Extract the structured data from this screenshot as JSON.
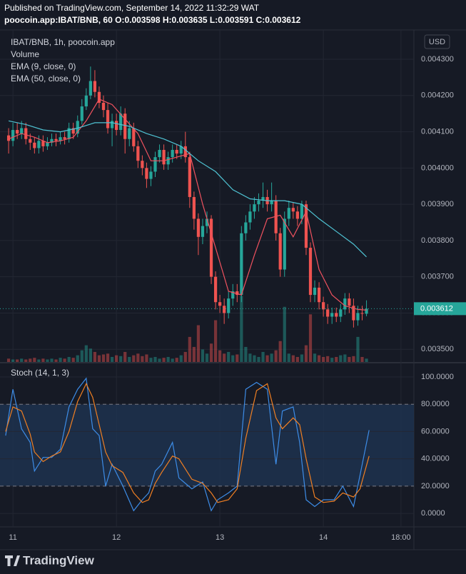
{
  "header": {
    "published": "Published on TradingView.com, September 14, 2022 11:32:29 WAT",
    "symbol_line": "poocoin.app:IBAT/BNB, 60 O:0.003598 H:0.003635 L:0.003591 C:0.003612"
  },
  "chart_data": [
    {
      "type": "candlestick",
      "title": "IBAT/BNB, 1h, poocoin.app",
      "currency": "USD",
      "up_color": "#26a69a",
      "down_color": "#ef5350",
      "grid": true,
      "xlim": [
        -3,
        93
      ],
      "xticks": [
        {
          "value": 0,
          "label": "11"
        },
        {
          "value": 24,
          "label": "12"
        },
        {
          "value": 48,
          "label": "13"
        },
        {
          "value": 72,
          "label": "14"
        },
        {
          "value": 90,
          "label": "18:00"
        }
      ],
      "ylim": [
        0.003465,
        0.0043808
      ],
      "yticks": [
        {
          "value": 0.0035,
          "label": "0.003500"
        },
        {
          "value": 0.0036,
          "label": "0.003600"
        },
        {
          "value": 0.0037,
          "label": "0.003700"
        },
        {
          "value": 0.0038,
          "label": "0.003800"
        },
        {
          "value": 0.0039,
          "label": "0.003900"
        },
        {
          "value": 0.004,
          "label": "0.004000"
        },
        {
          "value": 0.0041,
          "label": "0.004100"
        },
        {
          "value": 0.0042,
          "label": "0.004200"
        },
        {
          "value": 0.0043,
          "label": "0.004300"
        }
      ],
      "x": [
        -1,
        0,
        1,
        2,
        3,
        4,
        5,
        6,
        7,
        8,
        9,
        10,
        11,
        12,
        13,
        14,
        15,
        16,
        17,
        18,
        19,
        20,
        21,
        22,
        23,
        24,
        25,
        26,
        27,
        28,
        29,
        30,
        31,
        32,
        33,
        34,
        35,
        36,
        37,
        38,
        39,
        40,
        41,
        42,
        43,
        44,
        45,
        46,
        47,
        48,
        49,
        50,
        51,
        52,
        53,
        54,
        55,
        56,
        57,
        58,
        59,
        60,
        61,
        62,
        63,
        64,
        65,
        66,
        67,
        68,
        69,
        70,
        71,
        72,
        73,
        74,
        75,
        76,
        77,
        78,
        79,
        80,
        81,
        82
      ],
      "open": [
        0.00409,
        0.004075,
        0.004105,
        0.004095,
        0.00411,
        0.00408,
        0.00407,
        0.004055,
        0.004075,
        0.00406,
        0.00407,
        0.00408,
        0.004075,
        0.004085,
        0.00408,
        0.00411,
        0.004095,
        0.00413,
        0.00417,
        0.0042,
        0.00424,
        0.00421,
        0.00418,
        0.00416,
        0.00411,
        0.00413,
        0.004105,
        0.00415,
        0.00408,
        0.00411,
        0.00406,
        0.00402,
        0.004,
        0.00397,
        0.00399,
        0.00403,
        0.00405,
        0.00401,
        0.00403,
        0.00405,
        0.00404,
        0.00406,
        0.00403,
        0.00392,
        0.00386,
        0.00381,
        0.00384,
        0.00386,
        0.0037,
        0.00363,
        0.00362,
        0.0036,
        0.00364,
        0.00366,
        0.00365,
        0.00382,
        0.00385,
        0.00388,
        0.0039,
        0.00391,
        0.00392,
        0.0039,
        0.00391,
        0.00382,
        0.00372,
        0.00386,
        0.00389,
        0.00388,
        0.00386,
        0.0039,
        0.00378,
        0.00365,
        0.00367,
        0.00363,
        0.00361,
        0.00359,
        0.0036,
        0.00359,
        0.00361,
        0.00364,
        0.00362,
        0.00358,
        0.0036,
        0.003598
      ],
      "high": [
        0.00411,
        0.004125,
        0.004125,
        0.00413,
        0.004125,
        0.004095,
        0.004085,
        0.00409,
        0.00409,
        0.004085,
        0.004095,
        0.004095,
        0.0041,
        0.0041,
        0.004125,
        0.004125,
        0.004145,
        0.00419,
        0.00422,
        0.00428,
        0.00427,
        0.004225,
        0.0042,
        0.00418,
        0.00415,
        0.00415,
        0.00417,
        0.004165,
        0.00413,
        0.004125,
        0.004075,
        0.004035,
        0.004015,
        0.004005,
        0.004045,
        0.004065,
        0.004065,
        0.004045,
        0.004065,
        0.004065,
        0.004075,
        0.0041,
        0.004045,
        0.003935,
        0.003875,
        0.00386,
        0.00388,
        0.00387,
        0.003715,
        0.00365,
        0.00364,
        0.00366,
        0.00368,
        0.00368,
        0.00384,
        0.00387,
        0.0039,
        0.00392,
        0.00393,
        0.00396,
        0.00394,
        0.00396,
        0.003925,
        0.003835,
        0.00388,
        0.00391,
        0.003905,
        0.003895,
        0.00391,
        0.00391,
        0.003795,
        0.00369,
        0.003685,
        0.003645,
        0.003625,
        0.003615,
        0.003615,
        0.003625,
        0.003655,
        0.003655,
        0.00364,
        0.00362,
        0.00362,
        0.003635
      ],
      "low": [
        0.00404,
        0.00406,
        0.00408,
        0.00408,
        0.004065,
        0.00405,
        0.00404,
        0.00404,
        0.004045,
        0.00405,
        0.00406,
        0.00406,
        0.004065,
        0.004065,
        0.00407,
        0.00408,
        0.004085,
        0.00412,
        0.00416,
        0.00419,
        0.004195,
        0.004165,
        0.00414,
        0.004095,
        0.00406,
        0.00409,
        0.00409,
        0.00404,
        0.00406,
        0.004045,
        0.004,
        0.00398,
        0.003945,
        0.00395,
        0.003975,
        0.004015,
        0.003995,
        0.003995,
        0.004015,
        0.004025,
        0.004025,
        0.004015,
        0.00389,
        0.00383,
        0.00376,
        0.00379,
        0.00382,
        0.00368,
        0.00361,
        0.0036,
        0.00357,
        0.003585,
        0.00362,
        0.00363,
        0.00363,
        0.0038,
        0.00383,
        0.00386,
        0.00388,
        0.00389,
        0.00388,
        0.00388,
        0.0038,
        0.0037,
        0.0037,
        0.00384,
        0.00386,
        0.00384,
        0.003845,
        0.00376,
        0.00363,
        0.00363,
        0.00361,
        0.00359,
        0.00357,
        0.00357,
        0.003575,
        0.003575,
        0.003595,
        0.0036,
        0.00356,
        0.003565,
        0.00358,
        0.003591
      ],
      "close": [
        0.004075,
        0.004105,
        0.004095,
        0.00411,
        0.00408,
        0.00407,
        0.004055,
        0.004075,
        0.00406,
        0.00407,
        0.00408,
        0.004075,
        0.004085,
        0.00408,
        0.00411,
        0.004095,
        0.00413,
        0.00417,
        0.0042,
        0.00424,
        0.00421,
        0.00418,
        0.00416,
        0.00411,
        0.00413,
        0.004105,
        0.00415,
        0.00408,
        0.00411,
        0.00406,
        0.00402,
        0.004,
        0.00397,
        0.00399,
        0.00403,
        0.00405,
        0.00401,
        0.00403,
        0.00405,
        0.00404,
        0.00406,
        0.00403,
        0.00392,
        0.00386,
        0.00381,
        0.00384,
        0.00386,
        0.0037,
        0.00363,
        0.00362,
        0.0036,
        0.00364,
        0.00366,
        0.00365,
        0.00382,
        0.00385,
        0.00388,
        0.0039,
        0.00391,
        0.00392,
        0.0039,
        0.00391,
        0.00382,
        0.00372,
        0.00386,
        0.00389,
        0.00388,
        0.00386,
        0.0039,
        0.00378,
        0.00365,
        0.00367,
        0.00363,
        0.00361,
        0.00359,
        0.0036,
        0.00359,
        0.00361,
        0.00364,
        0.00362,
        0.00358,
        0.0036,
        0.003598,
        0.003612
      ],
      "volume": {
        "name": "Volume",
        "ylim": [
          0,
          100
        ],
        "values": [
          4,
          3,
          3,
          4,
          3,
          4,
          5,
          3,
          4,
          3,
          4,
          3,
          5,
          4,
          6,
          5,
          8,
          14,
          20,
          16,
          12,
          8,
          9,
          10,
          6,
          8,
          7,
          12,
          6,
          8,
          10,
          7,
          9,
          5,
          6,
          4,
          5,
          6,
          4,
          5,
          8,
          12,
          30,
          18,
          44,
          15,
          10,
          22,
          50,
          14,
          10,
          12,
          8,
          9,
          79,
          18,
          10,
          8,
          6,
          12,
          8,
          10,
          14,
          25,
          66,
          10,
          8,
          6,
          9,
          20,
          57,
          10,
          8,
          6,
          7,
          5,
          6,
          8,
          9,
          6,
          7,
          30,
          6,
          4
        ]
      },
      "series": [
        {
          "name": "EMA (9, close, 0)",
          "color": "#f0525f",
          "x": [
            -1,
            2,
            5,
            8,
            11,
            14,
            17,
            20,
            23,
            26,
            29,
            32,
            35,
            38,
            41,
            44,
            47,
            50,
            53,
            56,
            59,
            62,
            65,
            68,
            71,
            74,
            77,
            80,
            82
          ],
          "values": [
            0.00408,
            0.004095,
            0.004085,
            0.00407,
            0.004075,
            0.004085,
            0.00413,
            0.00419,
            0.004175,
            0.004135,
            0.004095,
            0.00402,
            0.00402,
            0.00403,
            0.00404,
            0.0039,
            0.00378,
            0.00366,
            0.00365,
            0.00376,
            0.00386,
            0.00387,
            0.00381,
            0.00388,
            0.00372,
            0.00365,
            0.00362,
            0.00361,
            0.003608
          ]
        },
        {
          "name": "EMA (50, close, 0)",
          "color": "#4fc3d3",
          "x": [
            -1,
            3,
            7,
            11,
            15,
            19,
            23,
            27,
            31,
            35,
            39,
            43,
            47,
            51,
            55,
            59,
            63,
            67,
            71,
            75,
            79,
            82
          ],
          "values": [
            0.00413,
            0.00412,
            0.004105,
            0.0041,
            0.00411,
            0.004125,
            0.004125,
            0.004115,
            0.004095,
            0.00408,
            0.00406,
            0.00402,
            0.00399,
            0.00394,
            0.003915,
            0.00391,
            0.00391,
            0.0039,
            0.00386,
            0.003825,
            0.00379,
            0.003755
          ]
        }
      ]
    },
    {
      "type": "line",
      "title": "Stoch (14, 1, 3)",
      "xlim": [
        -3,
        93
      ],
      "ylim": [
        -9.9,
        109.4
      ],
      "yticks": [
        {
          "value": 0,
          "label": "0.0000"
        },
        {
          "value": 20,
          "label": "20.0000"
        },
        {
          "value": 40,
          "label": "40.0000"
        },
        {
          "value": 60,
          "label": "60.0000"
        },
        {
          "value": 80,
          "label": "80.0000"
        },
        {
          "value": 100,
          "label": "100.0000"
        }
      ],
      "bands": [
        80,
        20
      ],
      "band_color": "#1f3554",
      "x": [
        -1.7,
        0,
        2,
        4,
        5,
        7,
        9,
        11,
        13,
        15,
        17,
        18.5,
        20,
        21.5,
        23,
        25.5,
        28,
        30,
        31.5,
        33,
        34.5,
        37,
        38.5,
        41.5,
        44,
        46,
        47.5,
        50,
        52,
        54,
        56.5,
        59,
        61,
        62.5,
        65,
        66.5,
        68,
        70,
        72,
        74.5,
        76.5,
        79,
        80.5,
        82.6
      ],
      "series": [
        {
          "color": "#3d8ce6",
          "values": [
            57,
            91,
            62,
            52,
            31,
            41,
            41,
            47,
            78,
            91,
            99,
            62,
            57,
            20,
            36,
            20,
            2,
            10,
            15,
            31,
            36,
            52,
            26,
            18,
            23,
            2,
            10,
            15,
            20,
            91,
            96,
            91,
            36,
            75,
            78,
            52,
            10,
            5,
            10,
            10,
            20,
            5,
            28,
            61
          ]
        },
        {
          "color": "#f07f22",
          "values": [
            60,
            78,
            75,
            58,
            45,
            38,
            42,
            45,
            60,
            82,
            95,
            85,
            65,
            45,
            35,
            30,
            15,
            8,
            10,
            22,
            30,
            42,
            40,
            25,
            22,
            15,
            8,
            10,
            18,
            55,
            90,
            95,
            70,
            62,
            70,
            65,
            40,
            12,
            8,
            9,
            15,
            12,
            18,
            42
          ]
        }
      ]
    }
  ],
  "footer": {
    "brand": "TradingView"
  }
}
